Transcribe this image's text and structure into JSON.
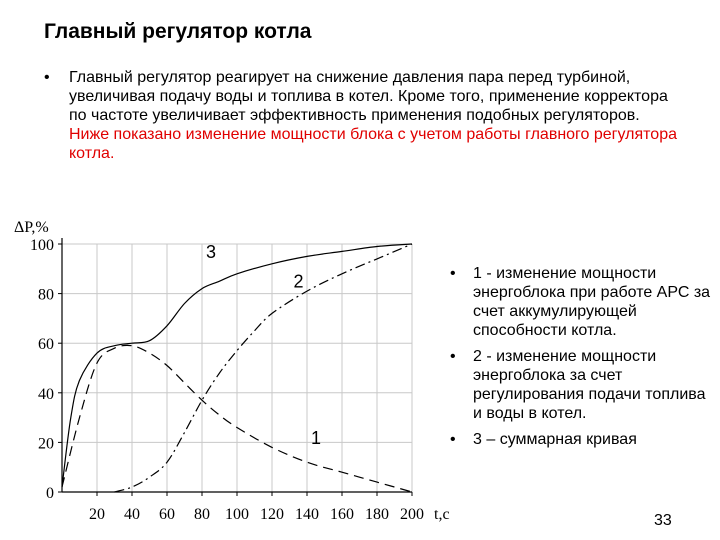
{
  "slide": {
    "title": "Главный регулятор котла",
    "paragraph_bullet": "•",
    "paragraph_black": "Главный регулятор реагирует на снижение давления пара перед турбиной, увеличивая подачу воды и топлива в котел. Кроме того, применение корректора по частоте увеличивает эффективность применения подобных регуляторов. ",
    "paragraph_red": "Ниже показано изменение мощности блока с учетом работы главного регулятора котла.",
    "legend": [
      {
        "bullet": "•",
        "text": "1 - изменение мощности энергоблока при работе АРС за счет аккумулирующей способности котла."
      },
      {
        "bullet": "•",
        "text": "2 - изменение мощности энергоблока за счет регулирования подачи топлива и воды в котел."
      },
      {
        "bullet": "•",
        "text": "3 – суммарная кривая"
      }
    ],
    "page_number": "33",
    "accent_color": "#e00000"
  },
  "chart_data": {
    "type": "line",
    "ylabel": "ΔP,%",
    "xlabel": "t,c",
    "x_ticks": [
      "20",
      "40",
      "60",
      "80",
      "100",
      "120",
      "140",
      "160",
      "180",
      "200"
    ],
    "y_ticks": [
      "0",
      "20",
      "40",
      "60",
      "80",
      "100"
    ],
    "xlim": [
      0,
      200
    ],
    "ylim": [
      0,
      100
    ],
    "grid": true,
    "series": [
      {
        "name": "1",
        "style": "dashed",
        "x": [
          0,
          10,
          20,
          30,
          40,
          50,
          60,
          70,
          80,
          90,
          100,
          120,
          140,
          160,
          180,
          200
        ],
        "y": [
          2,
          30,
          52,
          58,
          59,
          56,
          51,
          44,
          37,
          31,
          26,
          18,
          12,
          8,
          4,
          0
        ]
      },
      {
        "name": "2",
        "style": "dash-dot",
        "x": [
          30,
          40,
          50,
          60,
          70,
          80,
          90,
          100,
          110,
          120,
          140,
          160,
          180,
          200
        ],
        "y": [
          0,
          2,
          6,
          12,
          24,
          37,
          48,
          57,
          65,
          72,
          81,
          88,
          94,
          100
        ]
      },
      {
        "name": "3",
        "style": "solid",
        "x": [
          0,
          5,
          10,
          20,
          30,
          40,
          50,
          60,
          70,
          80,
          90,
          100,
          120,
          140,
          160,
          180,
          200
        ],
        "y": [
          2,
          30,
          45,
          56,
          59,
          60,
          61,
          67,
          76,
          82,
          85,
          88,
          92,
          95,
          97,
          99,
          100
        ]
      }
    ]
  }
}
